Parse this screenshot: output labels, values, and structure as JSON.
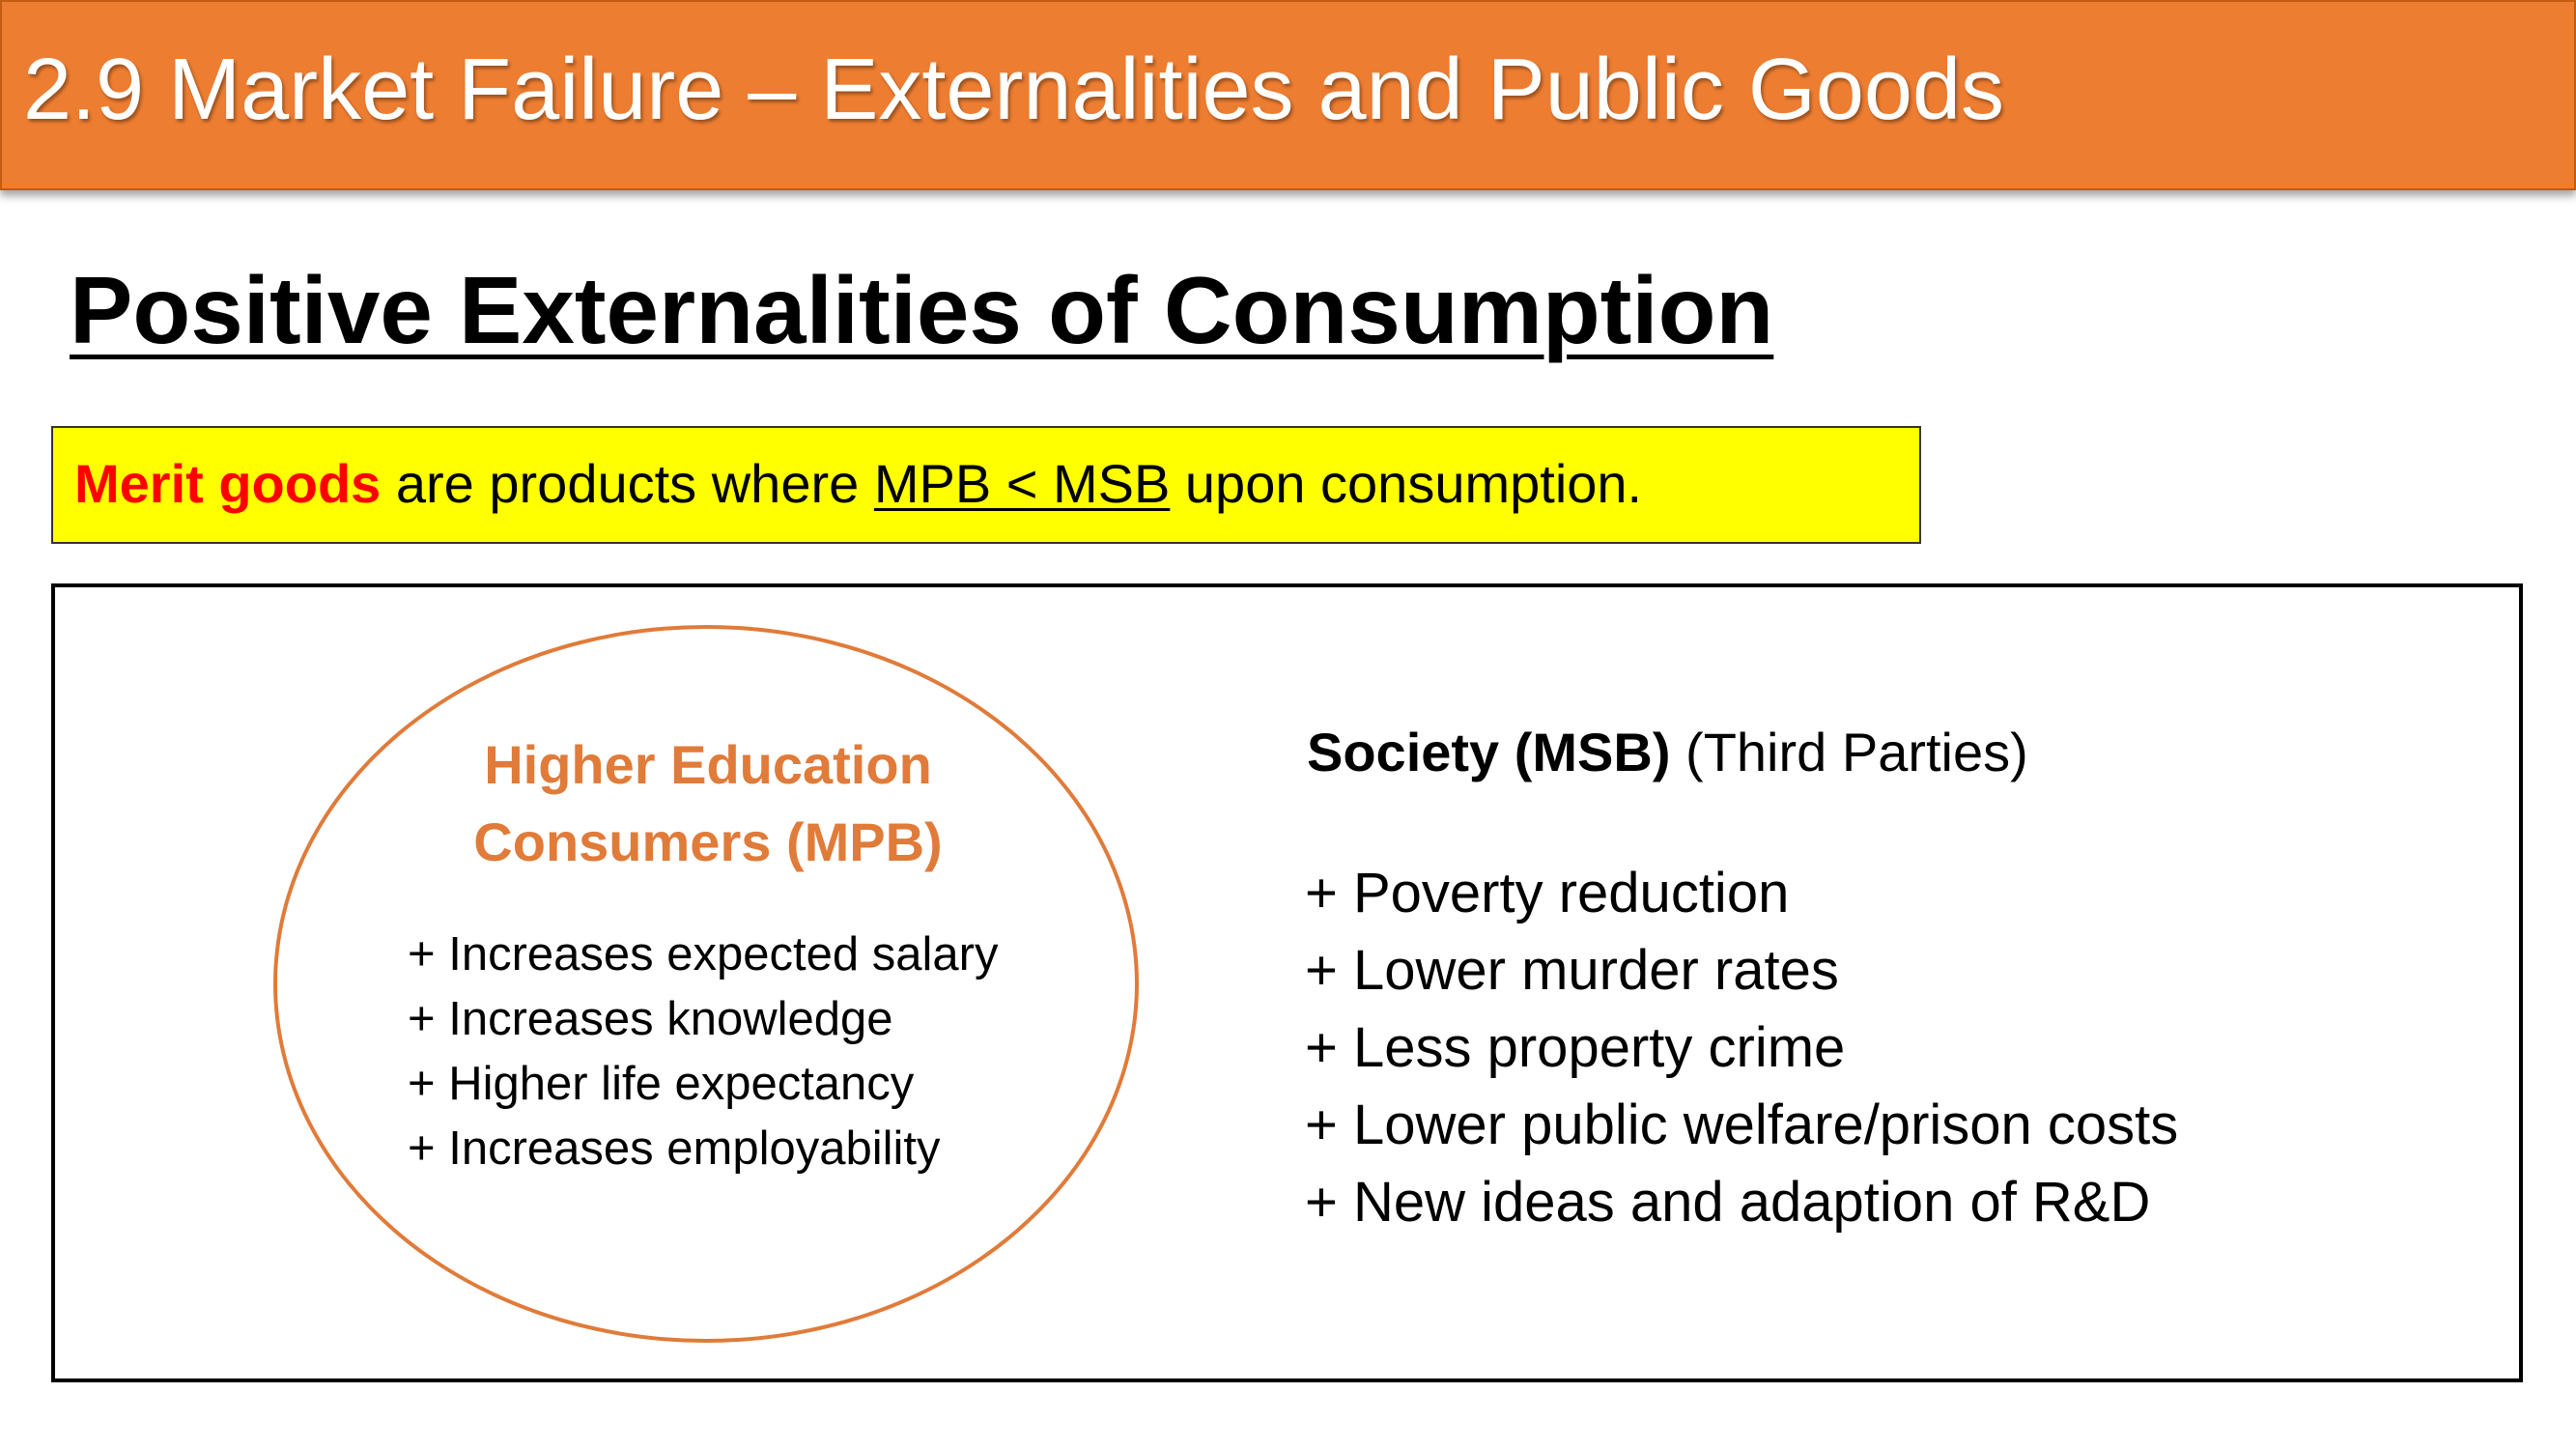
{
  "header": {
    "title": "2.9 Market Failure – Externalities and Public Goods"
  },
  "heading": "Positive Externalities of Consumption",
  "definition": {
    "term": "Merit goods",
    "text_before": " are products where ",
    "condition": "MPB < MSB",
    "text_after": " upon consumption."
  },
  "consumers": {
    "title_line1": "Higher Education",
    "title_line2": "Consumers (MPB)",
    "items": [
      "+ Increases expected salary",
      "+ Increases knowledge",
      "+ Higher life expectancy",
      "+ Increases employability"
    ]
  },
  "society": {
    "title_bold": "Society (MSB)",
    "title_rest": " (Third Parties)",
    "items": [
      "+ Poverty reduction",
      "+ Lower murder rates",
      "+ Less property crime",
      "+ Lower public welfare/prison costs",
      "+ New ideas and adaption of R&D"
    ]
  },
  "colors": {
    "header_bg": "#ED7D31",
    "consumer_accent": "#E07B39",
    "highlight_bg": "#FFFF00",
    "term_color": "#FF0000"
  }
}
